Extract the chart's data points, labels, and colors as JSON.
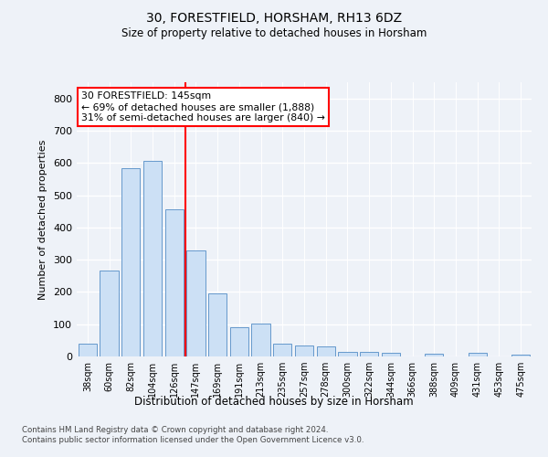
{
  "title1": "30, FORESTFIELD, HORSHAM, RH13 6DZ",
  "title2": "Size of property relative to detached houses in Horsham",
  "xlabel": "Distribution of detached houses by size in Horsham",
  "ylabel": "Number of detached properties",
  "bar_labels": [
    "38sqm",
    "60sqm",
    "82sqm",
    "104sqm",
    "126sqm",
    "147sqm",
    "169sqm",
    "191sqm",
    "213sqm",
    "235sqm",
    "257sqm",
    "278sqm",
    "300sqm",
    "322sqm",
    "344sqm",
    "366sqm",
    "388sqm",
    "409sqm",
    "431sqm",
    "453sqm",
    "475sqm"
  ],
  "bar_values": [
    40,
    265,
    585,
    605,
    455,
    330,
    195,
    90,
    103,
    40,
    35,
    32,
    13,
    15,
    10,
    0,
    8,
    0,
    10,
    0,
    7
  ],
  "bar_color": "#cce0f5",
  "bar_edge_color": "#6699cc",
  "vline_x_index": 4.5,
  "vline_color": "red",
  "annotation_lines": [
    "30 FORESTFIELD: 145sqm",
    "← 69% of detached houses are smaller (1,888)",
    "31% of semi-detached houses are larger (840) →"
  ],
  "annotation_box_color": "white",
  "annotation_box_edge": "red",
  "ylim": [
    0,
    850
  ],
  "yticks": [
    0,
    100,
    200,
    300,
    400,
    500,
    600,
    700,
    800
  ],
  "footer1": "Contains HM Land Registry data © Crown copyright and database right 2024.",
  "footer2": "Contains public sector information licensed under the Open Government Licence v3.0.",
  "bg_color": "#eef2f8",
  "plot_bg_color": "#eef2f8",
  "grid_color": "white"
}
